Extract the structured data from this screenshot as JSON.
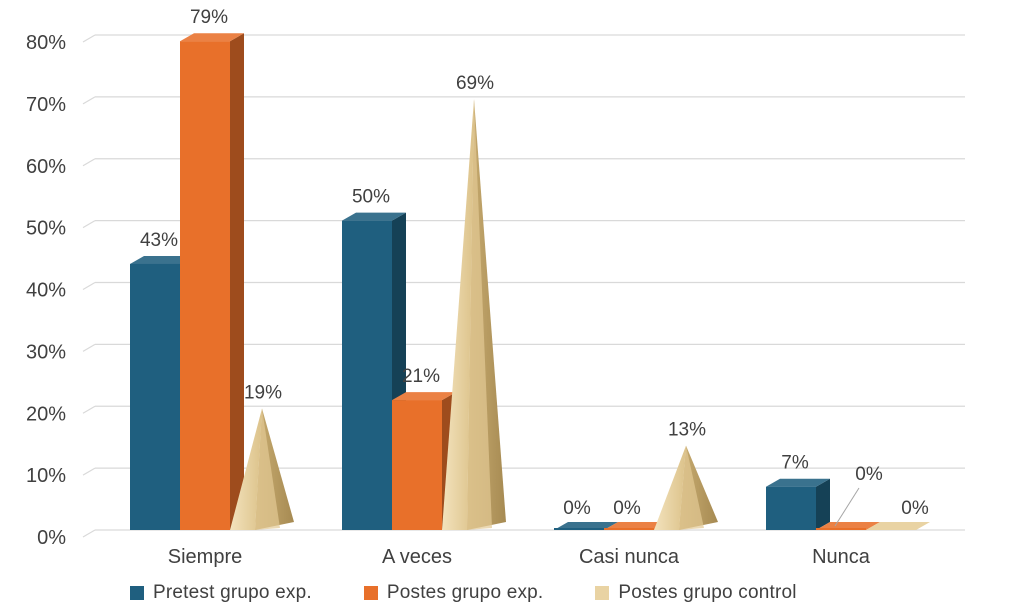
{
  "chart_data": {
    "type": "bar",
    "categories": [
      "Siempre",
      "A veces",
      "Casi nunca",
      "Nunca"
    ],
    "series": [
      {
        "name": "Pretest grupo exp.",
        "values": [
          43,
          50,
          0,
          7
        ],
        "labels": [
          "43%",
          "50%",
          "0%",
          "7%"
        ],
        "shape": "box",
        "color": "#1f5f7f"
      },
      {
        "name": "Postes grupo exp.",
        "values": [
          79,
          21,
          0,
          0
        ],
        "labels": [
          "79%",
          "21%",
          "0%",
          "0%"
        ],
        "shape": "box",
        "color": "#e8702a"
      },
      {
        "name": "Postes grupo control",
        "values": [
          19,
          69,
          13,
          0
        ],
        "labels": [
          "19%",
          "69%",
          "13%",
          "0%"
        ],
        "shape": "pyramid",
        "color": "#e9d3a3"
      }
    ],
    "yticks": [
      "0%",
      "10%",
      "20%",
      "30%",
      "40%",
      "50%",
      "60%",
      "70%",
      "80%"
    ],
    "ylim": [
      0,
      80
    ],
    "grid": true,
    "legend_position": "bottom"
  }
}
